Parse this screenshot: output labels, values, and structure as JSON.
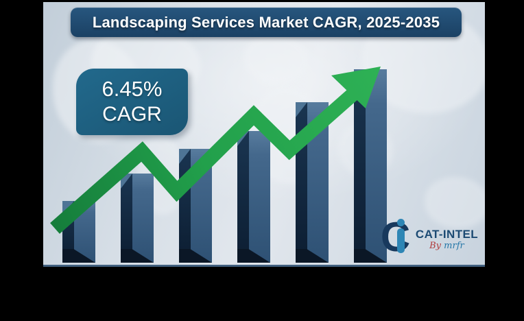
{
  "title_banner": {
    "label": "Landscaping Services Market CAGR, 2025-2035"
  },
  "cagr_badge": {
    "value": "6.45%",
    "label": "CAGR"
  },
  "logo": {
    "mark_c": "C",
    "wordmark": "CAT-INTEL",
    "byline_prefix": "By",
    "byline_brand": "mrfr"
  },
  "colors": {
    "frame": "#000000",
    "background": "#d7dfe7",
    "banner_bg": "#1d4a6b",
    "badge_bg": "#1e6080",
    "arrow_green": "#2eb155",
    "bar_front": "#3b6488",
    "bar_side": "#122a42",
    "logo_navy": "#1c4a73",
    "logo_light_blue": "#2e86b5",
    "byline_red": "#b03a3a"
  },
  "chart_data": {
    "type": "bar",
    "title": "Landscaping Services Market CAGR, 2025-2035",
    "bar_count": 6,
    "categories": [
      "",
      "",
      "",
      "",
      "",
      ""
    ],
    "relative_heights": [
      0.32,
      0.46,
      0.59,
      0.68,
      0.83,
      1.0
    ],
    "annotation": "6.45% CAGR",
    "overlay": "green upward zigzag trend arrow over ascending 3D bars",
    "axis_labels_visible": false,
    "xlabel": "",
    "ylabel": "",
    "legend": "none",
    "grid": "off"
  }
}
